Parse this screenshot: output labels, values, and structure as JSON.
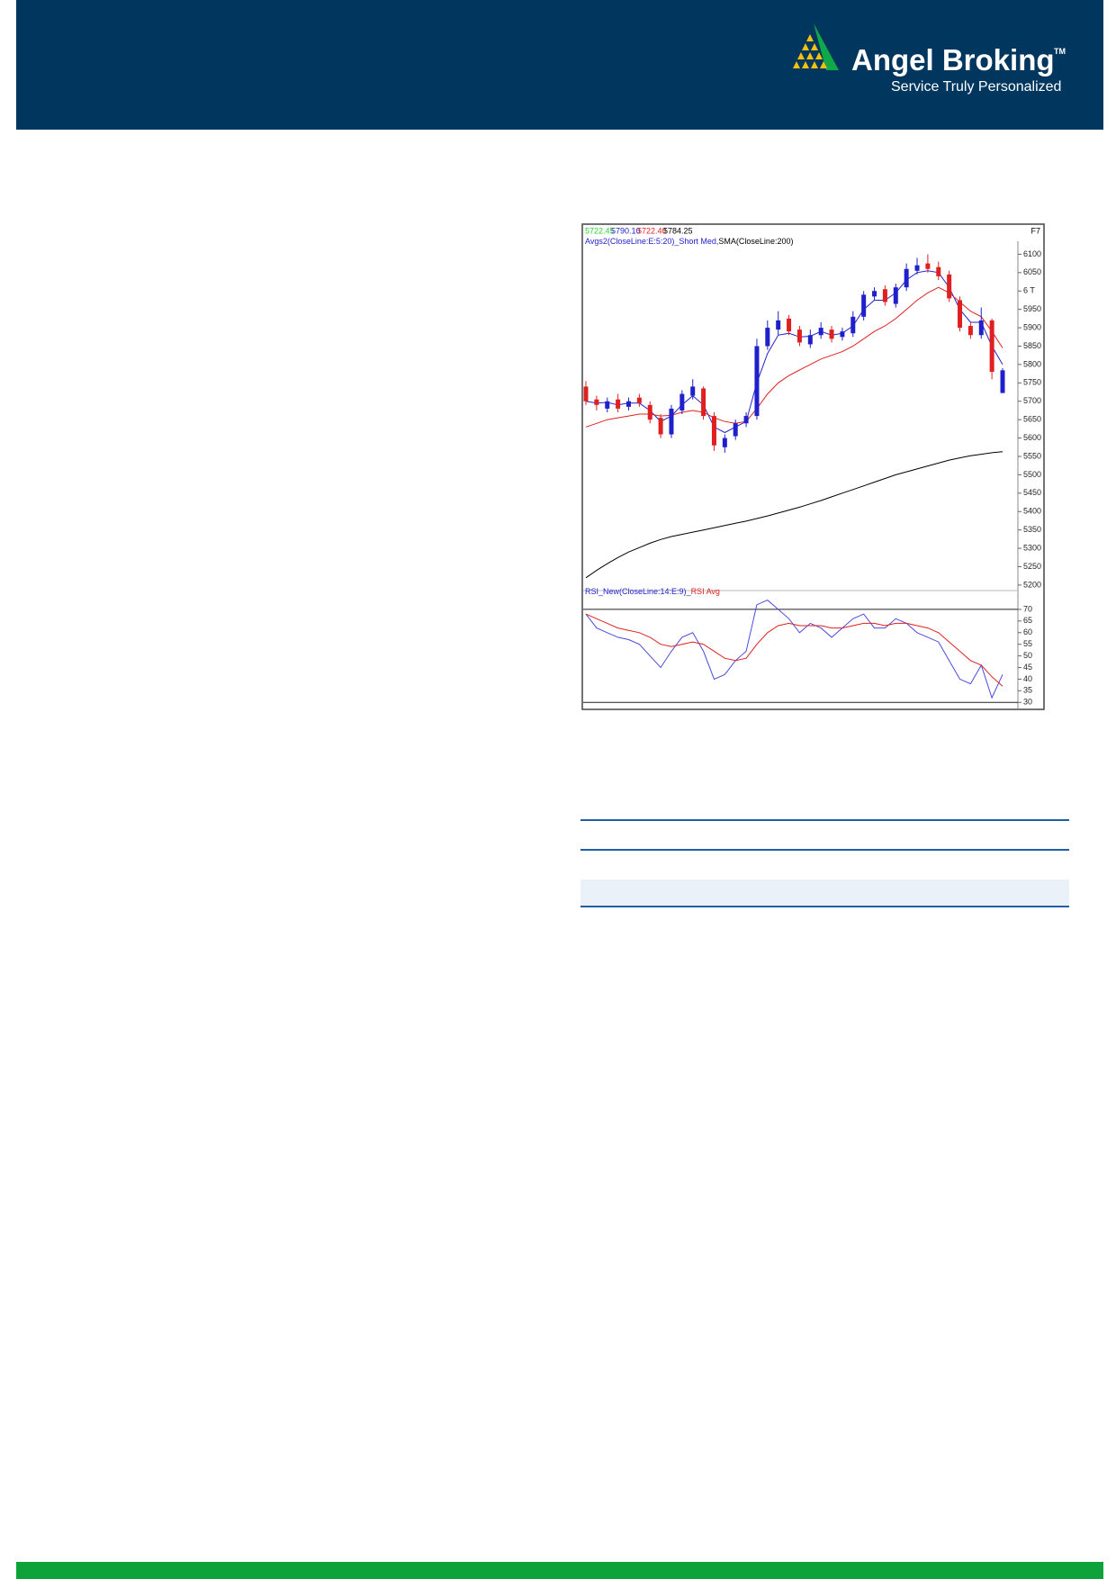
{
  "header": {
    "brand": "Angel Broking",
    "trademark": "TM",
    "tagline": "Service Truly Personalized"
  },
  "chart_data": [
    {
      "type": "candlestick",
      "ohlc_labels": [
        "5722.45",
        "5790.10",
        "5722.40",
        "5784.25"
      ],
      "ohlc_colors": [
        "#2bd12b",
        "#2222cc",
        "#e02020",
        "#000000"
      ],
      "corner_label": "F7",
      "legend": [
        {
          "text": "Avgs2(CloseLine:E:5:20)_Short Med,",
          "color": "#2222cc"
        },
        {
          "text": "SMA(CloseLine:200)",
          "color": "#000000"
        }
      ],
      "up_color": "#1f1fcc",
      "down_color": "#e02020",
      "open": [
        5740,
        5705,
        5680,
        5705,
        5685,
        5710,
        5690,
        5655,
        5610,
        5675,
        5715,
        5735,
        5660,
        5575,
        5605,
        5640,
        5660,
        5850,
        5895,
        5925,
        5895,
        5855,
        5880,
        5895,
        5875,
        5885,
        5930,
        5985,
        6005,
        5965,
        6010,
        6055,
        6075,
        6065,
        6045,
        5975,
        5905,
        5880,
        5920,
        5722.45
      ],
      "high": [
        5755,
        5715,
        5710,
        5720,
        5710,
        5720,
        5700,
        5665,
        5690,
        5730,
        5760,
        5740,
        5670,
        5610,
        5650,
        5670,
        5870,
        5920,
        5945,
        5935,
        5905,
        5895,
        5915,
        5905,
        5900,
        5945,
        6000,
        6010,
        6015,
        6020,
        6075,
        6090,
        6100,
        6080,
        6055,
        5985,
        5915,
        5955,
        5925,
        5790.1
      ],
      "low": [
        5690,
        5675,
        5670,
        5670,
        5675,
        5685,
        5640,
        5600,
        5600,
        5665,
        5705,
        5650,
        5565,
        5560,
        5595,
        5630,
        5650,
        5840,
        5880,
        5880,
        5850,
        5845,
        5870,
        5860,
        5865,
        5875,
        5920,
        5975,
        5960,
        5955,
        6000,
        6045,
        6050,
        6030,
        5970,
        5890,
        5870,
        5870,
        5760,
        5722.4
      ],
      "close": [
        5700,
        5690,
        5700,
        5680,
        5700,
        5695,
        5650,
        5610,
        5680,
        5720,
        5740,
        5660,
        5580,
        5600,
        5640,
        5660,
        5850,
        5900,
        5920,
        5890,
        5860,
        5880,
        5900,
        5870,
        5890,
        5930,
        5990,
        6000,
        5970,
        6010,
        6060,
        6070,
        6060,
        6040,
        5980,
        5900,
        5880,
        5920,
        5780,
        5784.25
      ],
      "series": [
        {
          "color": "#2222cc",
          "values": [
            5700,
            5695,
            5697,
            5690,
            5695,
            5695,
            5675,
            5645,
            5660,
            5690,
            5715,
            5690,
            5630,
            5615,
            5630,
            5645,
            5750,
            5830,
            5880,
            5885,
            5875,
            5877,
            5890,
            5880,
            5885,
            5905,
            5950,
            5975,
            5975,
            5995,
            6030,
            6050,
            6055,
            6050,
            6010,
            5950,
            5915,
            5915,
            5850,
            5800
          ]
        },
        {
          "color": "#e02020",
          "values": [
            5630,
            5640,
            5650,
            5655,
            5660,
            5665,
            5665,
            5660,
            5662,
            5670,
            5675,
            5670,
            5655,
            5645,
            5640,
            5645,
            5680,
            5720,
            5750,
            5770,
            5785,
            5800,
            5815,
            5825,
            5835,
            5850,
            5870,
            5890,
            5905,
            5925,
            5950,
            5975,
            5995,
            6010,
            5995,
            5970,
            5945,
            5930,
            5890,
            5845
          ]
        },
        {
          "color": "#000000",
          "values": [
            5220,
            5240,
            5258,
            5275,
            5290,
            5302,
            5314,
            5324,
            5332,
            5338,
            5344,
            5350,
            5356,
            5362,
            5368,
            5374,
            5381,
            5388,
            5396,
            5404,
            5412,
            5421,
            5430,
            5440,
            5450,
            5460,
            5470,
            5480,
            5490,
            5500,
            5508,
            5516,
            5524,
            5532,
            5540,
            5546,
            5552,
            5556,
            5560,
            5563
          ]
        }
      ],
      "ylim": [
        5190,
        6150
      ],
      "yticks": [
        5200,
        5250,
        5300,
        5350,
        5400,
        5450,
        5500,
        5550,
        5600,
        5650,
        5700,
        5750,
        5800,
        5850,
        5900,
        5950,
        {
          "value": 6000,
          "label": "6 T"
        },
        6050,
        6100
      ]
    },
    {
      "type": "line",
      "legend": [
        {
          "text": "RSI_New(CloseLine:14:E:9)_",
          "color": "#2222cc"
        },
        {
          "text": "RSI Avg",
          "color": "#e02020"
        }
      ],
      "series": [
        {
          "color": "#4a4ae0",
          "values": [
            68,
            62,
            60,
            58,
            57,
            55,
            50,
            45,
            52,
            58,
            60,
            52,
            40,
            42,
            48,
            52,
            72,
            74,
            70,
            66,
            60,
            64,
            62,
            58,
            62,
            66,
            68,
            62,
            62,
            66,
            64,
            60,
            58,
            56,
            48,
            40,
            38,
            46,
            32,
            42
          ]
        },
        {
          "color": "#e02020",
          "values": [
            68,
            66,
            64,
            62,
            61,
            60,
            58,
            55,
            54,
            55,
            56,
            55,
            52,
            49,
            48,
            49,
            55,
            60,
            63,
            64,
            63,
            63,
            63,
            62,
            62,
            63,
            64,
            64,
            63,
            64,
            64,
            63,
            62,
            60,
            56,
            52,
            48,
            46,
            41,
            37
          ]
        }
      ],
      "reference_lines": [
        70,
        30
      ],
      "ylim": [
        27,
        75
      ],
      "yticks": [
        30,
        35,
        40,
        45,
        50,
        55,
        60,
        65,
        70
      ]
    }
  ]
}
